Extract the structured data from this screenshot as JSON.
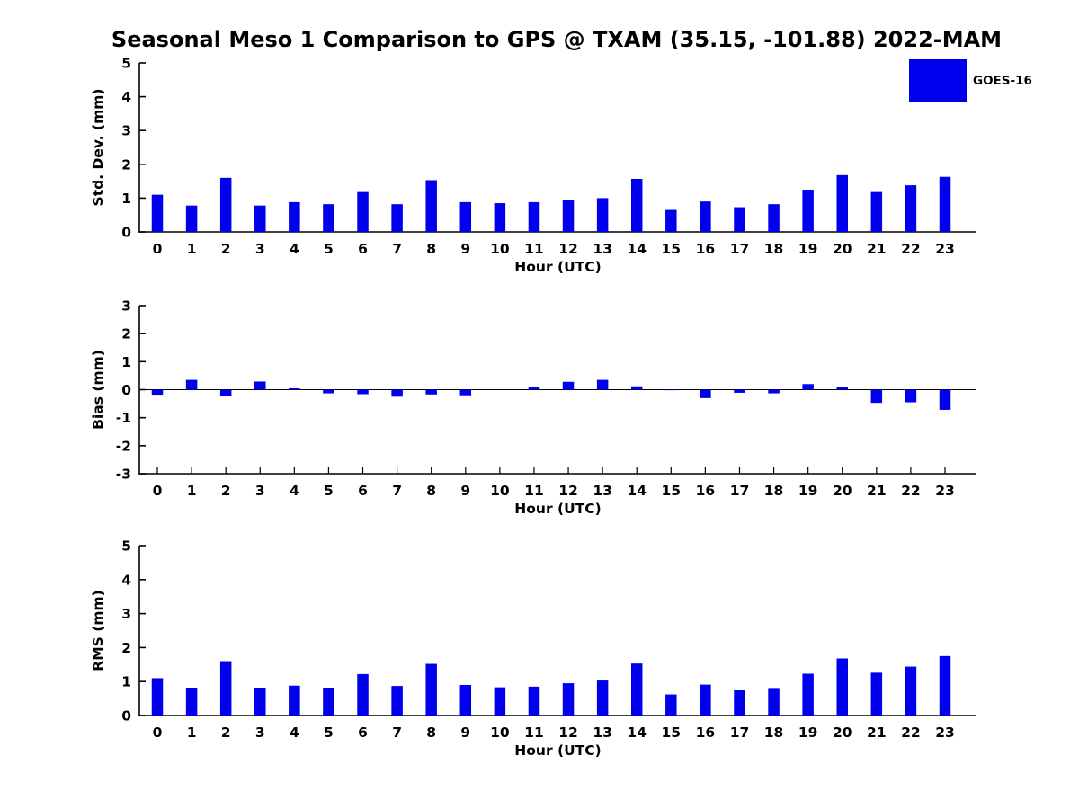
{
  "figure": {
    "title": "Seasonal Meso 1 Comparison to GPS @ TXAM (35.15, -101.88) 2022-MAM",
    "legend": {
      "label": "GOES-16",
      "swatch_color": "#0000ee",
      "position": "top-right"
    },
    "colors": {
      "bar": "#0000ee",
      "axis": "#000000",
      "text": "#000000",
      "background": "#ffffff"
    }
  },
  "chart_data": [
    {
      "id": "std-dev",
      "type": "bar",
      "title": "",
      "xlabel": "Hour (UTC)",
      "ylabel": "Std. Dev. (mm)",
      "ylim": [
        0,
        5
      ],
      "yticks": [
        0,
        1,
        2,
        3,
        4,
        5
      ],
      "grid": false,
      "legend_position": "upper right",
      "categories": [
        "0",
        "1",
        "2",
        "3",
        "4",
        "5",
        "6",
        "7",
        "8",
        "9",
        "10",
        "11",
        "12",
        "13",
        "14",
        "15",
        "16",
        "17",
        "18",
        "19",
        "20",
        "21",
        "22",
        "23"
      ],
      "series": [
        {
          "name": "GOES-16",
          "values": [
            1.1,
            0.78,
            1.6,
            0.78,
            0.88,
            0.82,
            1.18,
            0.82,
            1.53,
            0.88,
            0.85,
            0.88,
            0.93,
            1.0,
            1.57,
            0.65,
            0.9,
            0.73,
            0.82,
            1.25,
            1.68,
            1.18,
            1.38,
            1.63
          ]
        }
      ]
    },
    {
      "id": "bias",
      "type": "bar",
      "title": "",
      "xlabel": "Hour (UTC)",
      "ylabel": "Bias (mm)",
      "ylim": [
        -3,
        3
      ],
      "yticks": [
        -3,
        -2,
        -1,
        0,
        1,
        2,
        3
      ],
      "grid": false,
      "zero_line": true,
      "categories": [
        "0",
        "1",
        "2",
        "3",
        "4",
        "5",
        "6",
        "7",
        "8",
        "9",
        "10",
        "11",
        "12",
        "13",
        "14",
        "15",
        "16",
        "17",
        "18",
        "19",
        "20",
        "21",
        "22",
        "23"
      ],
      "series": [
        {
          "name": "GOES-16",
          "values": [
            -0.18,
            0.35,
            -0.21,
            0.29,
            0.05,
            -0.13,
            -0.16,
            -0.25,
            -0.17,
            -0.2,
            0.0,
            0.1,
            0.28,
            0.35,
            0.12,
            -0.02,
            -0.3,
            -0.11,
            -0.13,
            0.2,
            0.08,
            -0.47,
            -0.45,
            -0.72
          ]
        }
      ]
    },
    {
      "id": "rms",
      "type": "bar",
      "title": "",
      "xlabel": "Hour (UTC)",
      "ylabel": "RMS (mm)",
      "ylim": [
        0,
        5
      ],
      "yticks": [
        0,
        1,
        2,
        3,
        4,
        5
      ],
      "grid": false,
      "categories": [
        "0",
        "1",
        "2",
        "3",
        "4",
        "5",
        "6",
        "7",
        "8",
        "9",
        "10",
        "11",
        "12",
        "13",
        "14",
        "15",
        "16",
        "17",
        "18",
        "19",
        "20",
        "21",
        "22",
        "23"
      ],
      "series": [
        {
          "name": "GOES-16",
          "values": [
            1.1,
            0.82,
            1.6,
            0.82,
            0.88,
            0.82,
            1.22,
            0.87,
            1.52,
            0.9,
            0.83,
            0.85,
            0.95,
            1.03,
            1.53,
            0.62,
            0.91,
            0.74,
            0.81,
            1.23,
            1.68,
            1.26,
            1.44,
            1.75
          ]
        }
      ]
    }
  ]
}
